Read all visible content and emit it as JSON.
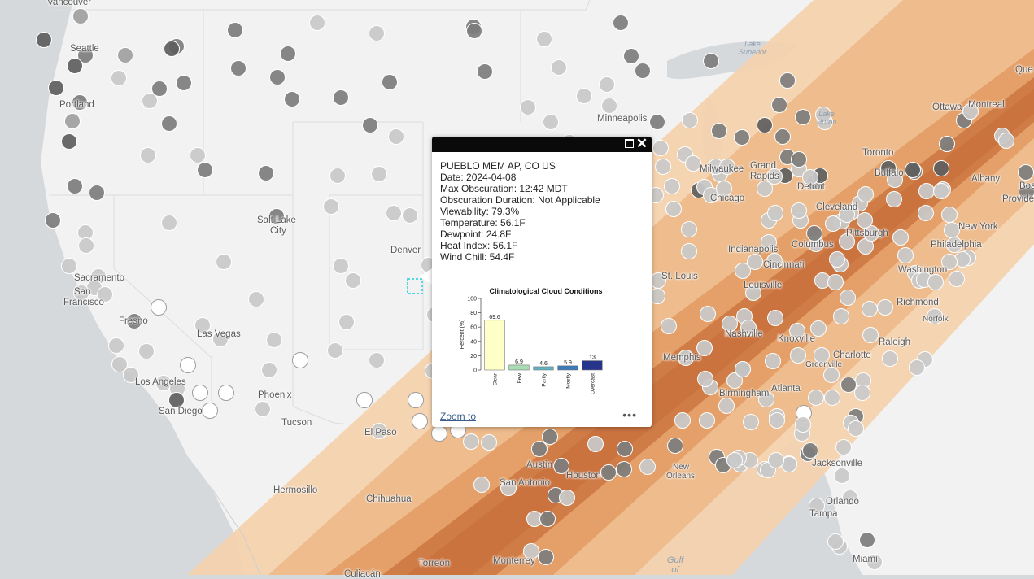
{
  "colors": {
    "land": "#f2f2f2",
    "water": "#d6d9dc",
    "band_outer": "#f4d2ae",
    "band_mid": "#edbb8b",
    "band_inner": "#e39e66",
    "band_center": "#c9733f",
    "dots": [
      "#a0a0a0",
      "#7d7d7d",
      "#c9c9c9",
      "#5e5e5e",
      "#ffffff"
    ]
  },
  "map_labels": {
    "vancouver": "Vancouver",
    "seattle": "Seattle",
    "portland": "Portland",
    "sacramento": "Sacramento",
    "san_francisco_1": "San",
    "san_francisco_2": "Francisco",
    "fresno": "Fresno",
    "las_vegas": "Las Vegas",
    "los_angeles": "Los Angeles",
    "san_diego": "San Diego",
    "phoenix": "Phoenix",
    "tucson": "Tucson",
    "salt_lake_1": "Salt Lake",
    "salt_lake_2": "City",
    "denver": "Denver",
    "el_paso": "El Paso",
    "hermosillo": "Hermosillo",
    "chihuahua": "Chihuahua",
    "culiacan": "Culiacán",
    "torreon": "Torreón",
    "monterrey": "Monterrey",
    "austin": "Austin",
    "san_antonio": "San Antonio",
    "houston": "Houston",
    "minneapolis": "Minneapolis",
    "milwaukee": "Milwaukee",
    "chicago": "Chicago",
    "grand_rapids_1": "Grand",
    "grand_rapids_2": "Rapids",
    "detroit": "Detroit",
    "cleveland": "Cleveland",
    "toronto": "Toronto",
    "buffalo": "Buffalo",
    "ottawa": "Ottawa",
    "montreal": "Montreal",
    "quebec": "Que",
    "albany": "Albany",
    "boston": "Bos",
    "providence": "Provide",
    "new_york": "New York",
    "philadelphia": "Philadelphia",
    "pittsburgh": "Pittsburgh",
    "columbus": "Columbus",
    "indianapolis": "Indianapolis",
    "cincinnati": "Cincinnati",
    "st_louis": "St. Louis",
    "louisville": "Louisville",
    "washington": "Washington",
    "richmond": "Richmond",
    "norfolk": "Norfolk",
    "nashville": "Nashville",
    "knoxville": "Knoxville",
    "memphis": "Memphis",
    "charlotte": "Charlotte",
    "greenville": "Greenville",
    "raleigh": "Raleigh",
    "birmingham": "Birmingham",
    "atlanta": "Atlanta",
    "new_orleans_1": "New",
    "new_orleans_2": "Orleans",
    "jacksonville": "Jacksonville",
    "orlando": "Orlando",
    "tampa": "Tampa",
    "miami": "Miami",
    "lake_superior_1": "Lake",
    "lake_superior_2": "Superior",
    "lake_huron_1": "Lake",
    "lake_huron_2": "Huron",
    "gulf_1": "Gulf",
    "gulf_2": "of"
  },
  "popup": {
    "title": "PUEBLO MEM AP, CO US",
    "date": "Date: 2024-04-08",
    "max_obscuration": "Max Obscuration: 12:42 MDT",
    "duration": "Obscuration Duration: Not Applicable",
    "viewability": "Viewability: 79.3%",
    "temperature": "Temperature: 56.1F",
    "dewpoint": "Dewpoint: 24.8F",
    "heat_index": "Heat Index: 56.1F",
    "wind_chill": "Wind Chill: 54.4F",
    "zoom_to": "Zoom to",
    "more": "•••"
  },
  "chart_data": {
    "type": "bar",
    "title": "Climatological Cloud Conditions",
    "ylabel": "Percent (%)",
    "xlabel": "",
    "ylim": [
      0,
      100
    ],
    "yticks": [
      0,
      20,
      40,
      60,
      80,
      100
    ],
    "categories": [
      "Clear",
      "Few",
      "Partly",
      "Mostly",
      "Overcast"
    ],
    "values": [
      69.6,
      6.9,
      4.6,
      5.9,
      13
    ],
    "value_labels": [
      "69.6",
      "6.9",
      "4.6",
      "5.9",
      "13"
    ],
    "colors": [
      "#ffffc8",
      "#a8dcb4",
      "#5fb4c4",
      "#3a7ab8",
      "#27348b"
    ],
    "grid": false,
    "legend": "none"
  }
}
